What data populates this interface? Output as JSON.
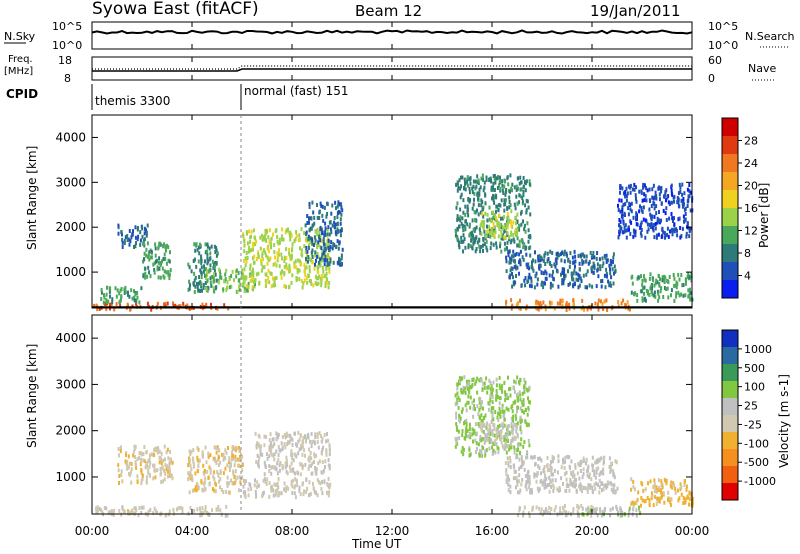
{
  "header": {
    "station": "Syowa East (fitACF)",
    "beam": "Beam 12",
    "date": "19/Jan/2011"
  },
  "top_panels": {
    "nsky_label": "N.Sky",
    "nsky_ticks": [
      "10^5",
      "10^0"
    ],
    "nsearch_label": "N.Search",
    "nsearch_ticks": [
      "10^5",
      "10^0"
    ],
    "freq_label": "Freq.",
    "freq_unit": "[MHz]",
    "freq_ticks": [
      "18",
      "8"
    ],
    "nave_label": "Nave",
    "nave_ticks": [
      "60",
      "0"
    ],
    "cpid_label": "CPID",
    "cpid_modes": [
      {
        "name": "themis 3300",
        "start_hour": 0
      },
      {
        "name": "normal (fast) 151",
        "start_hour": 6
      }
    ]
  },
  "colors": {
    "power_scale": [
      "#0a1ef0",
      "#1f4fb8",
      "#2d7a78",
      "#4aa85a",
      "#9cd24a",
      "#f0d020",
      "#f5a623",
      "#f07820",
      "#e03a10",
      "#d00000"
    ],
    "velocity_scale": [
      "#e00000",
      "#f06010",
      "#f59020",
      "#f0b030",
      "#d0c8b0",
      "#c0c0c0",
      "#80c840",
      "#3a9a5a",
      "#2a6aa0",
      "#1030c0"
    ]
  },
  "chart_data": [
    {
      "type": "heatmap",
      "title": "Power",
      "ylabel": "Slant Range [km]",
      "yticks": [
        "1000",
        "2000",
        "3000",
        "4000"
      ],
      "ylim": [
        200,
        4500
      ],
      "xlim": [
        0,
        24
      ],
      "colorbar_label": "Power [dB]",
      "colorbar_ticks": [
        "4",
        "8",
        "12",
        "16",
        "20",
        "24",
        "28"
      ],
      "colorbar_range": [
        0,
        30
      ],
      "regions": [
        {
          "t0": 0.0,
          "t1": 5.5,
          "r0": 200,
          "r1": 350,
          "v": 24
        },
        {
          "t0": 0.3,
          "t1": 2.0,
          "r0": 350,
          "r1": 700,
          "v": 10
        },
        {
          "t0": 1.0,
          "t1": 2.2,
          "r0": 1600,
          "r1": 2100,
          "v": 6
        },
        {
          "t0": 2.0,
          "t1": 3.2,
          "r0": 900,
          "r1": 1700,
          "v": 10
        },
        {
          "t0": 3.8,
          "t1": 5.0,
          "r0": 600,
          "r1": 1700,
          "v": 8
        },
        {
          "t0": 4.5,
          "t1": 6.5,
          "r0": 600,
          "r1": 1100,
          "v": 12
        },
        {
          "t0": 6.0,
          "t1": 9.5,
          "r0": 700,
          "r1": 2000,
          "v": 14
        },
        {
          "t0": 8.5,
          "t1": 10.0,
          "r0": 1200,
          "r1": 2600,
          "v": 6
        },
        {
          "t0": 14.5,
          "t1": 17.5,
          "r0": 1500,
          "r1": 3200,
          "v": 8
        },
        {
          "t0": 15.5,
          "t1": 17.0,
          "r0": 1800,
          "r1": 2400,
          "v": 14
        },
        {
          "t0": 16.5,
          "t1": 21.0,
          "r0": 700,
          "r1": 1500,
          "v": 6
        },
        {
          "t0": 16.5,
          "t1": 21.5,
          "r0": 200,
          "r1": 420,
          "v": 22
        },
        {
          "t0": 21.5,
          "t1": 24.0,
          "r0": 400,
          "r1": 1000,
          "v": 10
        },
        {
          "t0": 21.0,
          "t1": 24.0,
          "r0": 1800,
          "r1": 3000,
          "v": 4
        }
      ]
    },
    {
      "type": "heatmap",
      "title": "Velocity",
      "ylabel": "Slant Range [km]",
      "yticks": [
        "1000",
        "2000",
        "3000",
        "4000"
      ],
      "ylim": [
        200,
        4500
      ],
      "xlim": [
        0,
        24
      ],
      "xticks": [
        "00:00",
        "04:00",
        "08:00",
        "12:00",
        "16:00",
        "20:00",
        "00:00"
      ],
      "xlabel": "Time UT",
      "colorbar_label": "Velocity [m s-1]",
      "colorbar_ticks": [
        "-1000",
        "-500",
        "-100",
        "-25",
        "25",
        "100",
        "500",
        "1000"
      ],
      "colorbar_range": [
        -1200,
        1200
      ],
      "regions": [
        {
          "t0": 0.0,
          "t1": 5.5,
          "r0": 200,
          "r1": 400,
          "v": -100
        },
        {
          "t0": 1.0,
          "t1": 3.2,
          "r0": 900,
          "r1": 1700,
          "v": -150
        },
        {
          "t0": 3.8,
          "t1": 6.0,
          "r0": 700,
          "r1": 1700,
          "v": -200
        },
        {
          "t0": 6.0,
          "t1": 9.5,
          "r0": 600,
          "r1": 1000,
          "v": -60
        },
        {
          "t0": 6.5,
          "t1": 9.5,
          "r0": 1100,
          "r1": 2000,
          "v": 0
        },
        {
          "t0": 14.5,
          "t1": 17.5,
          "r0": 1500,
          "r1": 3200,
          "v": 300
        },
        {
          "t0": 15.5,
          "t1": 17.0,
          "r0": 1700,
          "r1": 2200,
          "v": 0
        },
        {
          "t0": 16.5,
          "t1": 21.0,
          "r0": 700,
          "r1": 1500,
          "v": 60
        },
        {
          "t0": 17.0,
          "t1": 20.5,
          "r0": 200,
          "r1": 420,
          "v": -60
        },
        {
          "t0": 19.5,
          "t1": 22.0,
          "r0": 200,
          "r1": 400,
          "v": 200
        },
        {
          "t0": 21.5,
          "t1": 24.0,
          "r0": 400,
          "r1": 1000,
          "v": -300
        }
      ]
    }
  ]
}
